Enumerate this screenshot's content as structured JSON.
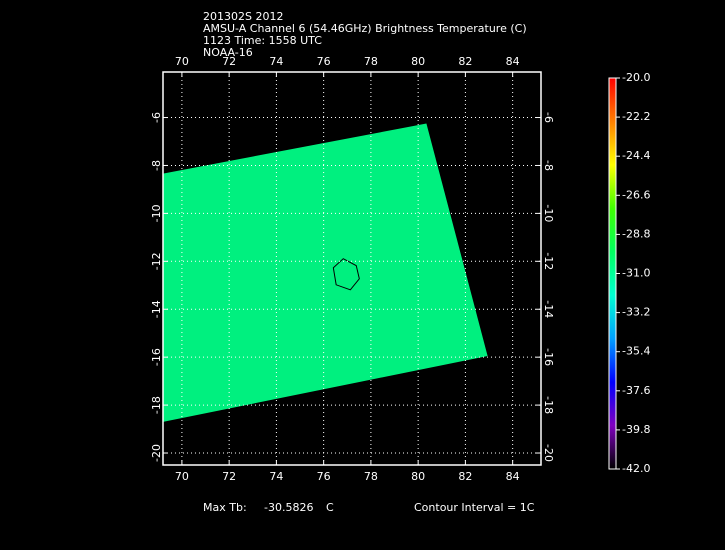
{
  "chart_data": {
    "type": "map",
    "title_lines": [
      "201302S 2012",
      "AMSU-A Channel 6 (54.46GHz) Brightness Temperature (C)",
      "1123 Time: 1558 UTC",
      "NOAA-16"
    ],
    "xlim": [
      69.2,
      85.2
    ],
    "ylim": [
      -20.5,
      -4.1
    ],
    "xticks": [
      70,
      72,
      74,
      76,
      78,
      80,
      82,
      84
    ],
    "yticks": [
      -6,
      -8,
      -10,
      -12,
      -14,
      -16,
      -18,
      -20
    ],
    "grid": true,
    "swath": {
      "color": "#00f07f",
      "lon": [
        69.2,
        80.35,
        82.94,
        69.2
      ],
      "lat": [
        -8.34,
        -6.25,
        -15.95,
        -18.7
      ]
    },
    "contour": {
      "color": "#000000",
      "lon": [
        76.41,
        76.83,
        77.38,
        77.51,
        77.13,
        76.53
      ],
      "lat": [
        -12.27,
        -11.89,
        -12.18,
        -12.73,
        -13.19,
        -12.98
      ]
    },
    "colorbar": {
      "lim": [
        -42,
        -20
      ],
      "colors": [
        "#ff0000",
        "#ff8000",
        "#ffff00",
        "#40ff00",
        "#00ff60",
        "#00ffd0",
        "#00a0ff",
        "#0000ff",
        "#8000c0",
        "#000000"
      ],
      "ticks": [
        {
          "value": -20,
          "label": "-20.0"
        },
        {
          "value": -22.2,
          "label": "-22.2"
        },
        {
          "value": -24.4,
          "label": "-24.4"
        },
        {
          "value": -26.6,
          "label": "-26.6"
        },
        {
          "value": -28.8,
          "label": "-28.8"
        },
        {
          "value": -31,
          "label": "-31.0"
        },
        {
          "value": -33.2,
          "label": "-33.2"
        },
        {
          "value": -35.4,
          "label": "-35.4"
        },
        {
          "value": -37.6,
          "label": "-37.6"
        },
        {
          "value": -39.8,
          "label": "-39.8"
        },
        {
          "value": -42,
          "label": "-42.0"
        }
      ]
    },
    "footer": {
      "max_label": "Max Tb:",
      "max_value": -30.5826,
      "max_unit": "C",
      "contour_interval": "Contour Interval = 1C"
    }
  }
}
